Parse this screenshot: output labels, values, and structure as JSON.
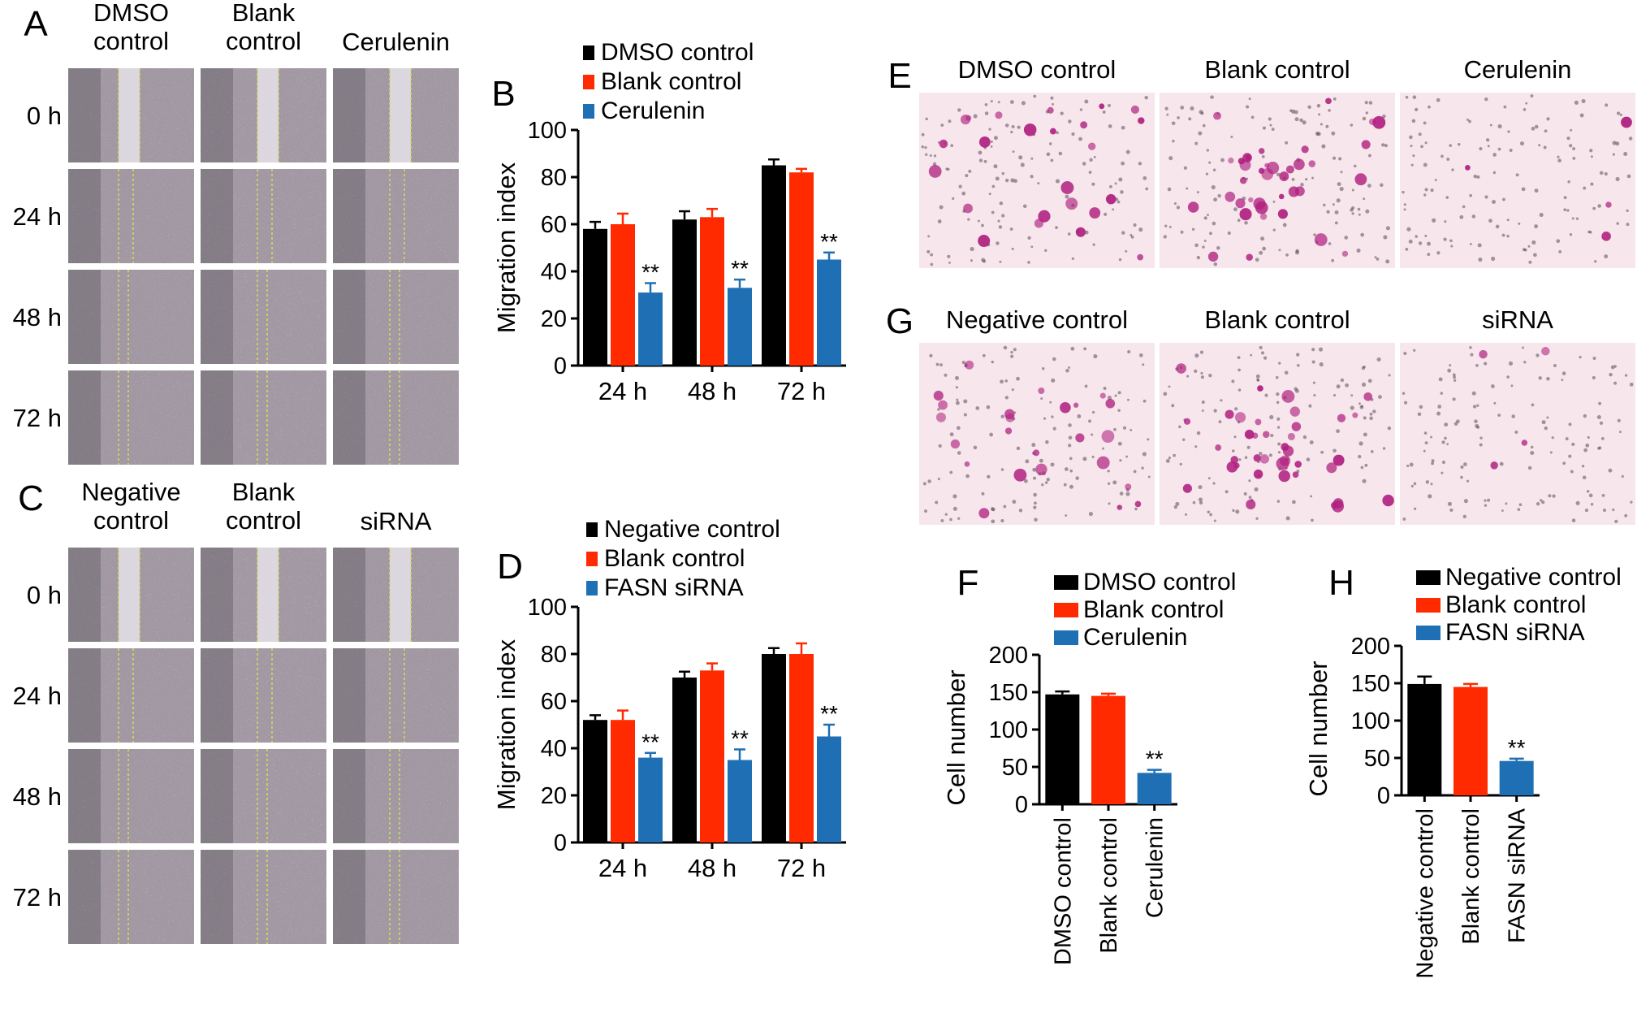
{
  "panel_letters": {
    "A": "A",
    "B": "B",
    "C": "C",
    "D": "D",
    "E": "E",
    "F": "F",
    "G": "G",
    "H": "H"
  },
  "panel_A": {
    "columns": [
      [
        "DMSO",
        "control"
      ],
      [
        "Blank",
        "control"
      ],
      [
        "Cerulenin"
      ]
    ],
    "rows": [
      "0 h",
      "24 h",
      "48 h",
      "72 h"
    ]
  },
  "panel_C": {
    "columns": [
      [
        "Negative",
        "control"
      ],
      [
        "Blank",
        "control"
      ],
      [
        "siRNA"
      ]
    ],
    "rows": [
      "0 h",
      "24 h",
      "48 h",
      "72 h"
    ]
  },
  "panel_E": {
    "columns": [
      "DMSO control",
      "Blank control",
      "Cerulenin"
    ]
  },
  "panel_G": {
    "columns": [
      "Negative control",
      "Blank control",
      "siRNA"
    ]
  },
  "significance_mark": "**",
  "colors": {
    "black": "#000000",
    "red": "#ff2a00",
    "blue": "#1f6fb4",
    "scratch_line": "#d8dc58",
    "stain": "#b0207f",
    "transwell_bg": "#f7e6ec"
  },
  "chart_data": [
    {
      "panel": "B",
      "type": "bar",
      "categories": [
        "24 h",
        "48 h",
        "72 h"
      ],
      "ylabel": "Migration index",
      "ylim": [
        0,
        100
      ],
      "yticks": [
        0,
        20,
        40,
        60,
        80,
        100
      ],
      "series": [
        {
          "name": "DMSO control",
          "color": "#000000",
          "values": [
            58,
            62,
            85
          ],
          "errors": [
            3,
            3.5,
            2.5
          ]
        },
        {
          "name": "Blank control",
          "color": "#ff2a00",
          "values": [
            60,
            63,
            82
          ],
          "errors": [
            4.5,
            3.5,
            1.5
          ]
        },
        {
          "name": "Cerulenin",
          "color": "#1f6fb4",
          "values": [
            31,
            33,
            45
          ],
          "errors": [
            4,
            3.5,
            3
          ]
        }
      ],
      "significance": [
        [
          2,
          0
        ],
        [
          2,
          1
        ],
        [
          2,
          2
        ]
      ]
    },
    {
      "panel": "D",
      "type": "bar",
      "categories": [
        "24 h",
        "48 h",
        "72 h"
      ],
      "ylabel": "Migration index",
      "ylim": [
        0,
        100
      ],
      "yticks": [
        0,
        20,
        40,
        60,
        80,
        100
      ],
      "series": [
        {
          "name": "Negative control",
          "color": "#000000",
          "values": [
            52,
            70,
            80
          ],
          "errors": [
            2,
            2.5,
            2.5
          ]
        },
        {
          "name": "Blank control",
          "color": "#ff2a00",
          "values": [
            52,
            73,
            80
          ],
          "errors": [
            4,
            3,
            4.5
          ]
        },
        {
          "name": "FASN siRNA",
          "color": "#1f6fb4",
          "values": [
            36,
            35,
            45
          ],
          "errors": [
            2,
            4.5,
            5
          ]
        }
      ],
      "significance": [
        [
          2,
          0
        ],
        [
          2,
          1
        ],
        [
          2,
          2
        ]
      ]
    },
    {
      "panel": "F",
      "type": "bar",
      "categories": [
        "DMSO control",
        "Blank control",
        "Cerulenin"
      ],
      "ylabel": "Cell number",
      "ylim": [
        0,
        200
      ],
      "yticks": [
        0,
        50,
        100,
        150,
        200
      ],
      "legend": [
        "DMSO control",
        "Blank control",
        "Cerulenin"
      ],
      "colors": [
        "#000000",
        "#ff2a00",
        "#1f6fb4"
      ],
      "values": [
        147,
        145,
        42
      ],
      "errors": [
        4,
        3,
        4
      ],
      "significance": [
        2
      ]
    },
    {
      "panel": "H",
      "type": "bar",
      "categories": [
        "Negative control",
        "Blank control",
        "FASN siRNA"
      ],
      "ylabel": "Cell number",
      "ylim": [
        0,
        200
      ],
      "yticks": [
        0,
        50,
        100,
        150,
        200
      ],
      "legend": [
        "Negative control",
        "Blank control",
        "FASN siRNA"
      ],
      "colors": [
        "#000000",
        "#ff2a00",
        "#1f6fb4"
      ],
      "values": [
        149,
        145,
        46
      ],
      "errors": [
        10,
        4,
        3
      ],
      "significance": [
        2
      ]
    }
  ]
}
